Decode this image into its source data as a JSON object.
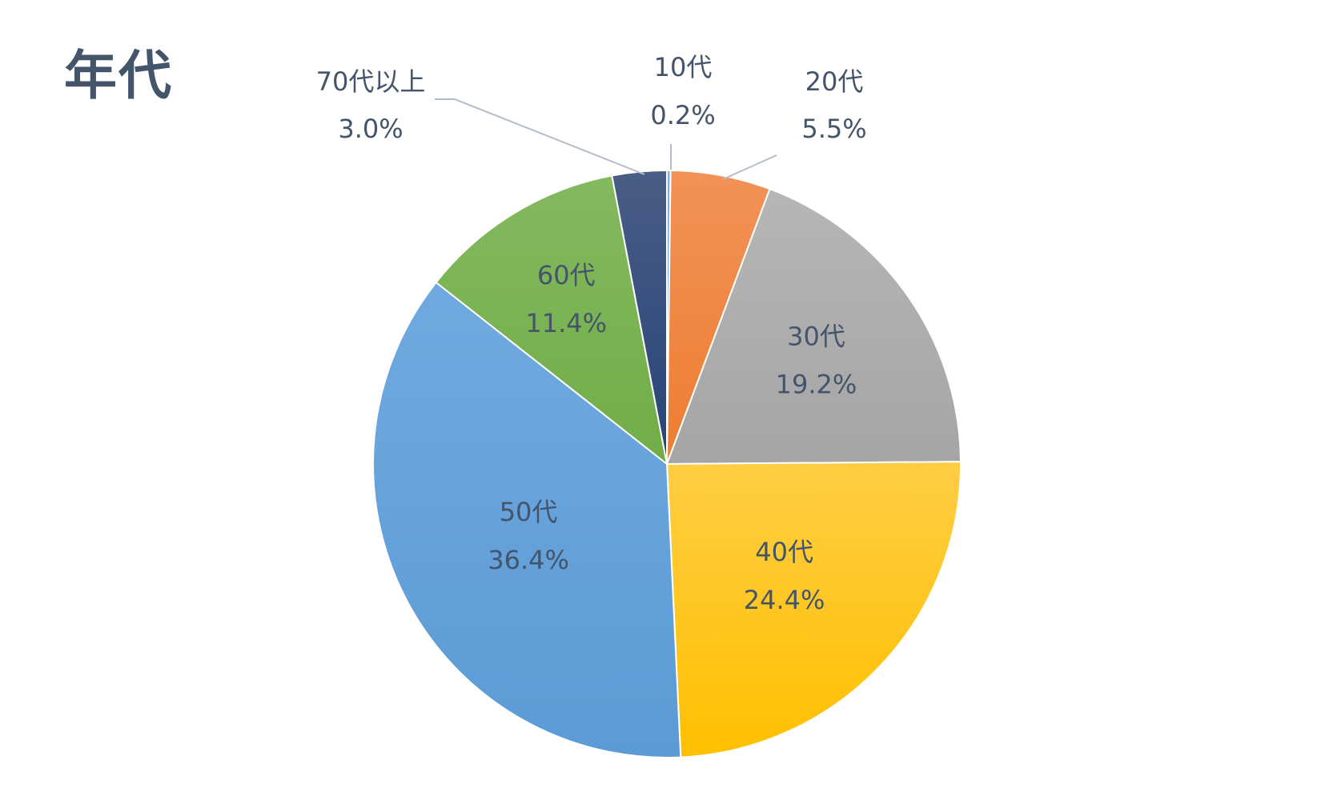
{
  "title": "年代",
  "chart_data": {
    "type": "pie",
    "title": "年代",
    "slices": [
      {
        "label": "10代",
        "value": 0.2,
        "pct_label": "0.2%",
        "color": "#5B9BD5",
        "color_light": "#7fb0e0"
      },
      {
        "label": "20代",
        "value": 5.5,
        "pct_label": "5.5%",
        "color": "#ED7D31",
        "color_light": "#f29257"
      },
      {
        "label": "30代",
        "value": 19.2,
        "pct_label": "19.2%",
        "color": "#A5A5A5",
        "color_light": "#b6b6b6"
      },
      {
        "label": "40代",
        "value": 24.4,
        "pct_label": "24.4%",
        "color": "#FFC000",
        "color_light": "#ffcd44"
      },
      {
        "label": "50代",
        "value": 36.4,
        "pct_label": "36.4%",
        "color": "#5B9BD5",
        "color_light": "#70a9e0"
      },
      {
        "label": "60代",
        "value": 11.4,
        "pct_label": "11.4%",
        "color": "#70AD47",
        "color_light": "#84b95f"
      },
      {
        "label": "70代以上",
        "value": 3.0,
        "pct_label": "3.0%",
        "color": "#264478",
        "color_light": "#4a5d85"
      }
    ],
    "start_angle": "12 o'clock",
    "direction": "clockwise",
    "legend": "none",
    "data_labels": "category and percentage"
  }
}
